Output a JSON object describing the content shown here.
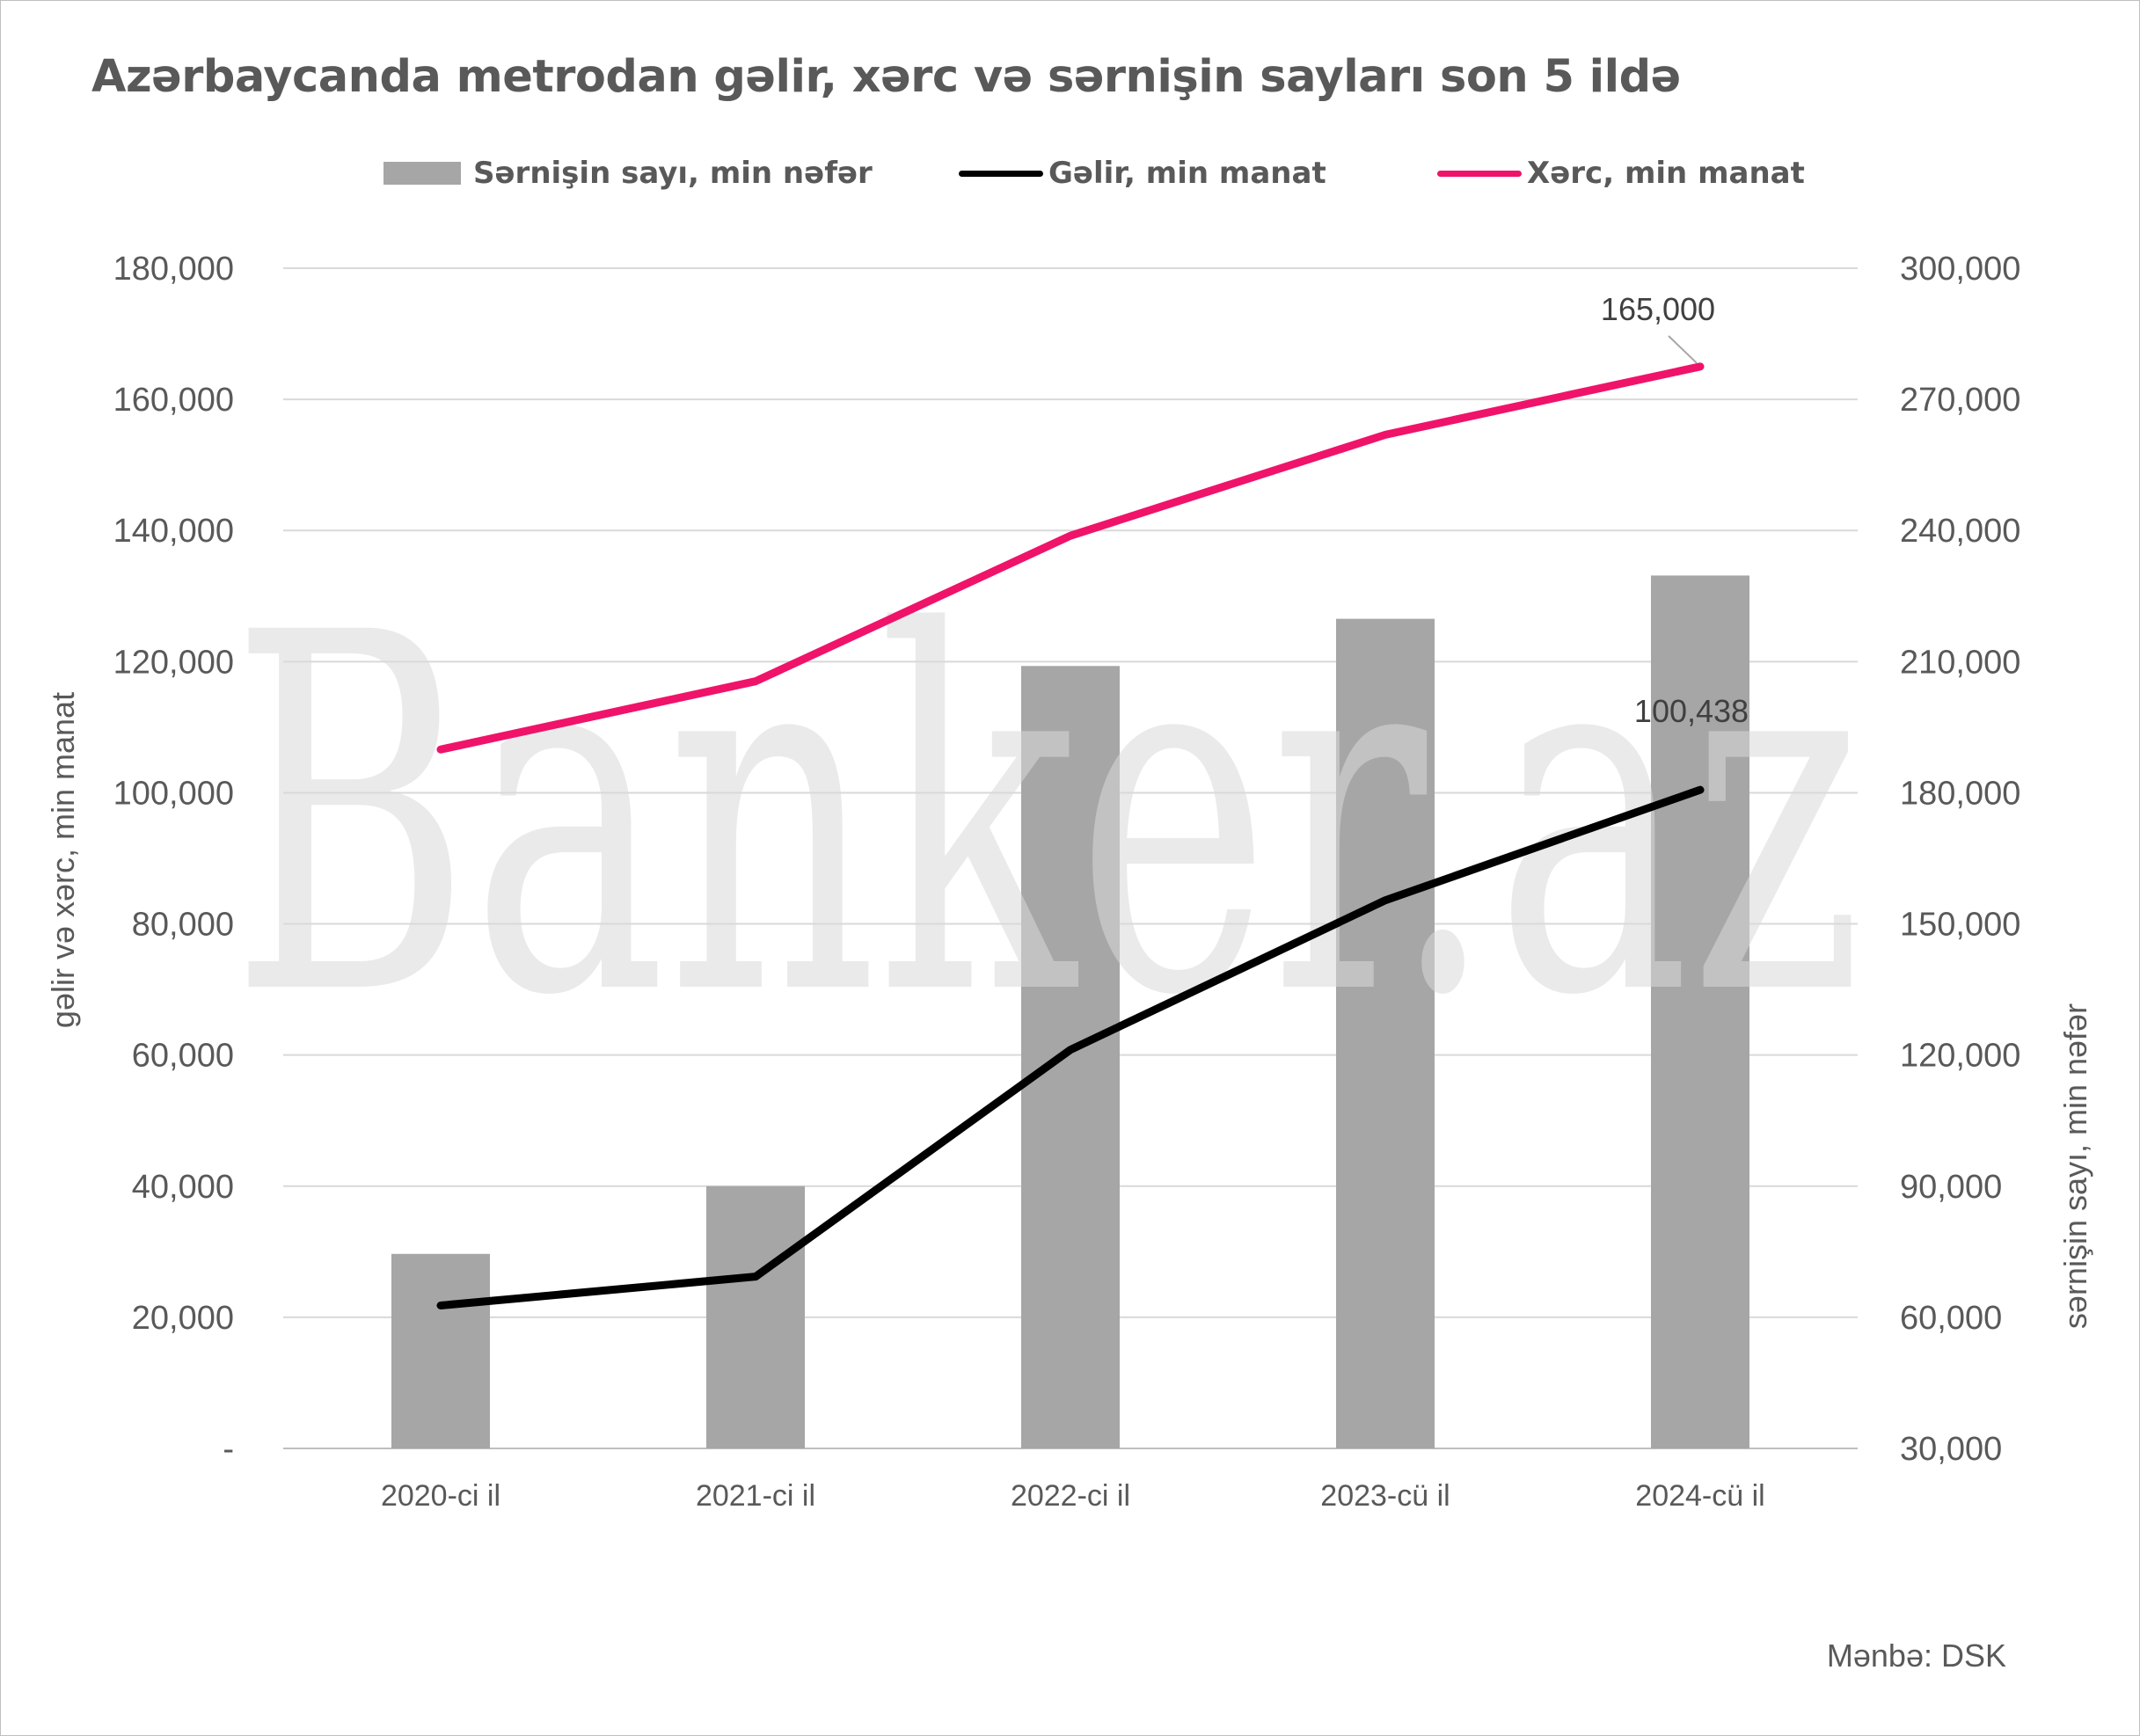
{
  "chart_data": {
    "type": "bar",
    "title": "Azərbaycanda metrodan gəlir, xərc və sərnişin sayları son 5 ildə",
    "categories": [
      "2020-ci il",
      "2021-ci il",
      "2022-ci il",
      "2023-cü il",
      "2024-cü il"
    ],
    "series": [
      {
        "name": "Sərnişin sayı, min nəfər",
        "type": "bar",
        "axis": "right",
        "color": "#a6a6a6",
        "values": [
          74500,
          90000,
          209000,
          219800,
          229700
        ]
      },
      {
        "name": "Gəlir, min manat",
        "type": "line",
        "axis": "left",
        "color": "#000000",
        "values": [
          21800,
          26200,
          60800,
          83600,
          100438
        ]
      },
      {
        "name": "Xərc, min manat",
        "type": "line",
        "axis": "left",
        "color": "#f0136a",
        "values": [
          106600,
          117000,
          139200,
          154600,
          165000
        ]
      }
    ],
    "y_left": {
      "label": "gəlir və xərc, min manat",
      "range": [
        0,
        180000
      ],
      "ticks": [
        0,
        20000,
        40000,
        60000,
        80000,
        100000,
        120000,
        140000,
        160000,
        180000
      ],
      "tick_labels": [
        "-",
        "20,000",
        "40,000",
        "60,000",
        "80,000",
        "100,000",
        "120,000",
        "140,000",
        "160,000",
        "180,000"
      ]
    },
    "y_right": {
      "label": "sərnişin sayı, min nəfər",
      "range": [
        30000,
        300000
      ],
      "ticks": [
        30000,
        60000,
        90000,
        120000,
        150000,
        180000,
        210000,
        240000,
        270000,
        300000
      ],
      "tick_labels": [
        "30,000",
        "60,000",
        "90,000",
        "120,000",
        "150,000",
        "180,000",
        "210,000",
        "240,000",
        "270,000",
        "300,000"
      ]
    },
    "data_labels": [
      {
        "series": "Xərc, min manat",
        "category": "2024-cü il",
        "text": "165,000"
      },
      {
        "series": "Gəlir, min manat",
        "category": "2024-cü il",
        "text": "100,438"
      }
    ],
    "grid": true,
    "legend_position": "top"
  },
  "watermark": "Banker.az",
  "source": "Mənbə: DSK"
}
